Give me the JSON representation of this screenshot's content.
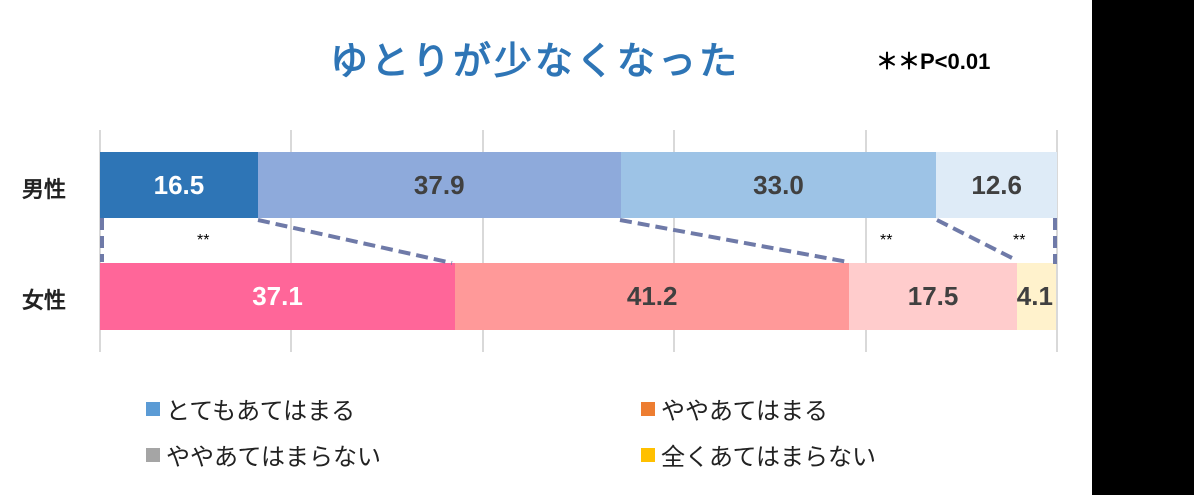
{
  "chart_data": {
    "type": "bar",
    "orientation": "horizontal",
    "stacked": "100%",
    "title": "ゆとりが少なくなった",
    "annotation": "＊＊P<0.01",
    "categories": [
      "男性",
      "女性"
    ],
    "series": [
      {
        "name": "とてもあてはまる",
        "values": [
          16.5,
          37.1
        ]
      },
      {
        "name": "ややあてはまる",
        "values": [
          37.9,
          41.2
        ]
      },
      {
        "name": "ややあてはまらない",
        "values": [
          33.0,
          17.5
        ]
      },
      {
        "name": "全くあてはまらない",
        "values": [
          12.6,
          4.1
        ]
      }
    ],
    "significance_markers": [
      "**",
      "**",
      "**"
    ],
    "xlim": [
      0,
      100
    ],
    "grid": true,
    "legend_position": "bottom"
  },
  "title": "ゆとりが少なくなった",
  "significance_note": "＊＊P<0.01",
  "rows": [
    {
      "label": "男性",
      "segments": [
        {
          "value": "16.5",
          "pct": 16.5,
          "color": "#2e75b6",
          "light": true
        },
        {
          "value": "37.9",
          "pct": 37.9,
          "color": "#8eaadb",
          "light": false
        },
        {
          "value": "33.0",
          "pct": 33.0,
          "color": "#9dc3e6",
          "light": false
        },
        {
          "value": "12.6",
          "pct": 12.6,
          "color": "#deebf7",
          "light": false
        }
      ]
    },
    {
      "label": "女性",
      "segments": [
        {
          "value": "37.1",
          "pct": 37.1,
          "color": "#ff6699",
          "light": true
        },
        {
          "value": "41.2",
          "pct": 41.2,
          "color": "#ff9999",
          "light": false
        },
        {
          "value": "17.5",
          "pct": 17.5,
          "color": "#ffcccc",
          "light": false
        },
        {
          "value": "4.1",
          "pct": 4.1,
          "color": "#fff2cc",
          "light": false
        }
      ]
    }
  ],
  "stars": [
    "**",
    "**",
    "**"
  ],
  "legend": [
    {
      "label": "とてもあてはまる",
      "color": "#5b9bd5"
    },
    {
      "label": "ややあてはまる",
      "color": "#ed7d31"
    },
    {
      "label": "ややあてはまらない",
      "color": "#a5a5a5"
    },
    {
      "label": "全くあてはまらない",
      "color": "#ffc000"
    }
  ],
  "connector_color": "#6f7aa8"
}
